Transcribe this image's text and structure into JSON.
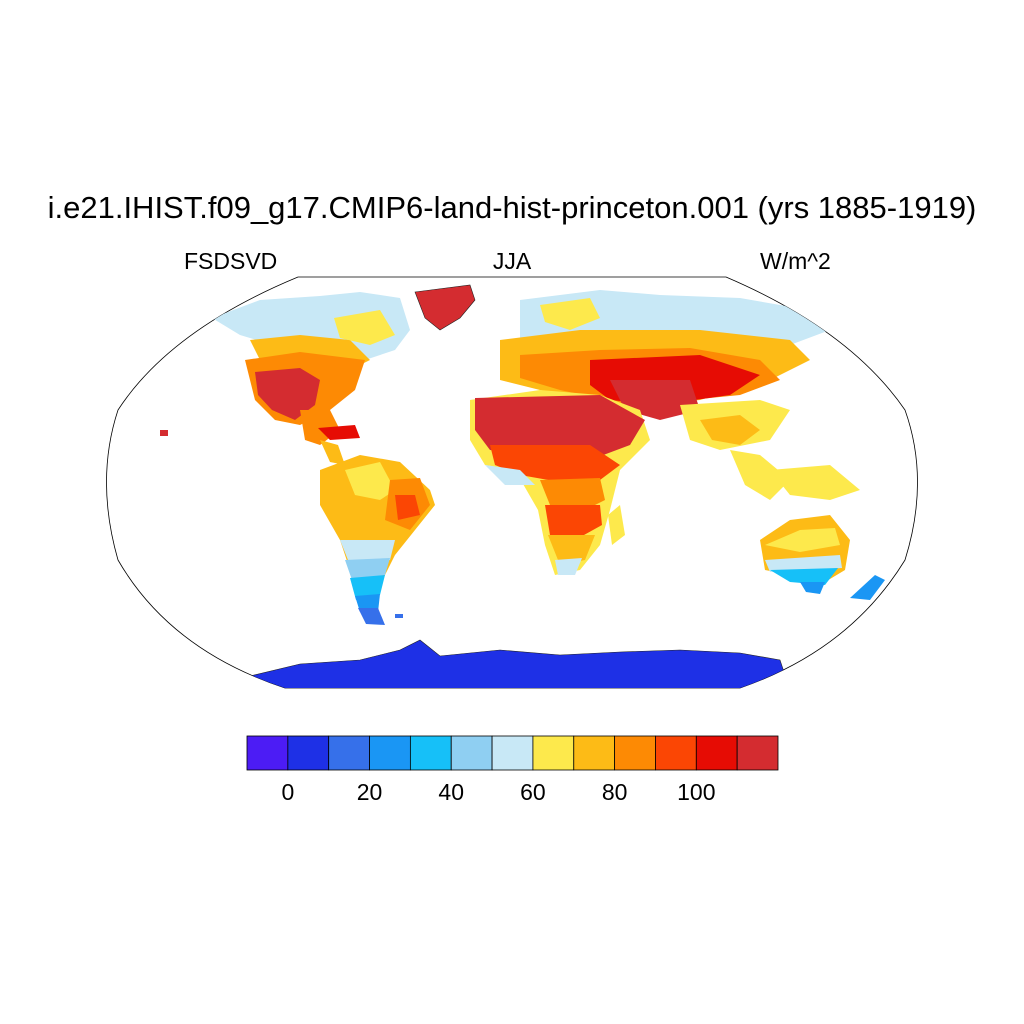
{
  "title": "i.e21.IHIST.f09_g17.CMIP6-land-hist-princeton.001 (yrs 1885-1919)",
  "left_label": "FSDSVD",
  "center_label": "JJA",
  "right_label": "W/m^2",
  "projection": "Robinson",
  "colorbar": {
    "colors": [
      "#4c1cf5",
      "#1e30e6",
      "#3670ea",
      "#1a96f4",
      "#16c0f8",
      "#8fcff2",
      "#c8e8f6",
      "#fde94c",
      "#fdbb16",
      "#fd8a04",
      "#fb4604",
      "#e60c04",
      "#d42c30"
    ],
    "tick_labels": [
      "0",
      "20",
      "40",
      "60",
      "80",
      "100"
    ]
  }
}
